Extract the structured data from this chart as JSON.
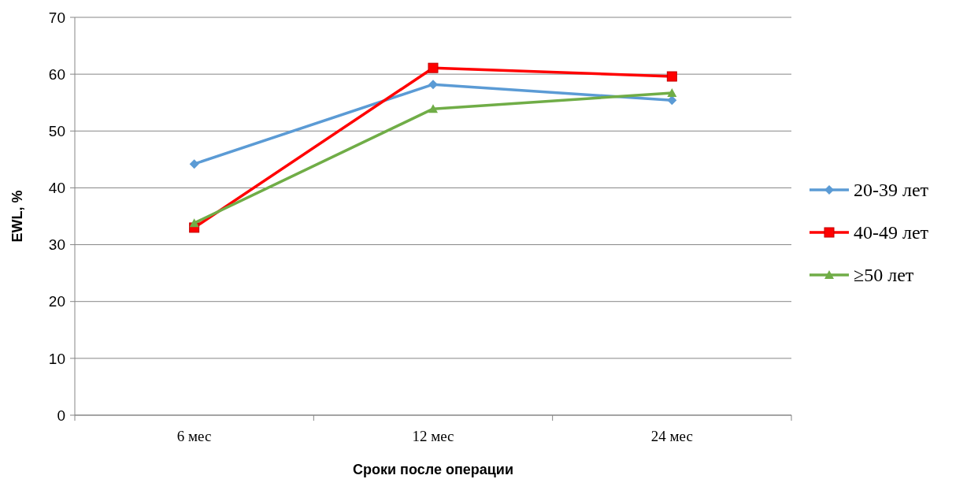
{
  "chart_data": {
    "type": "line",
    "xlabel": "Сроки после операции",
    "ylabel": "EWL, %",
    "categories": [
      "6 мес",
      "12 мес",
      "24 мес"
    ],
    "series": [
      {
        "name": "20-39 лет",
        "color": "#5b9bd5",
        "marker": "diamond",
        "values": [
          44.2,
          58.2,
          55.4
        ]
      },
      {
        "name": "40-49 лет",
        "color": "#ff0000",
        "marker": "square",
        "values": [
          33.0,
          61.1,
          59.6
        ]
      },
      {
        "name": "≥50 лет",
        "color": "#70ad47",
        "marker": "triangle",
        "values": [
          33.8,
          53.9,
          56.7
        ]
      }
    ],
    "ylim": [
      0,
      70
    ],
    "yticks": [
      0,
      10,
      20,
      30,
      40,
      50,
      60,
      70
    ],
    "grid": "y",
    "legend": "right",
    "line_style": "solid"
  }
}
